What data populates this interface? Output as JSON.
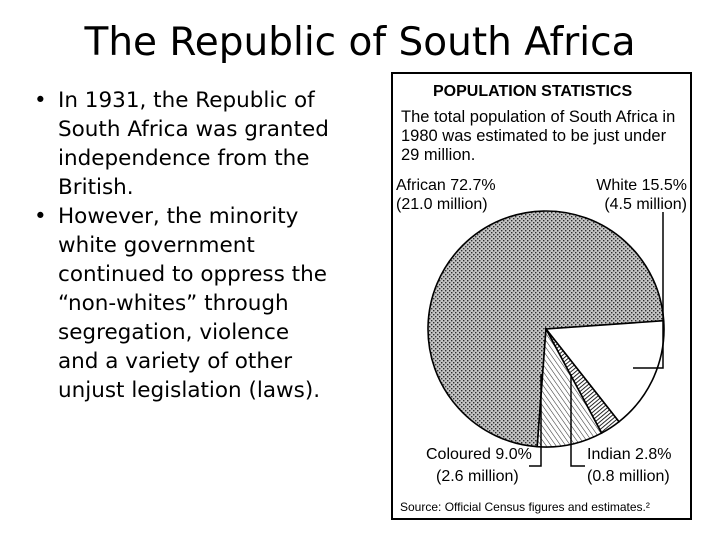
{
  "slide": {
    "title": "The Republic of South Africa",
    "bullets": [
      {
        "marker": "•",
        "text": "In 1931, the Republic of South Africa was granted independence from the British."
      },
      {
        "marker": "•",
        "text": "However, the minority white government continued to oppress the “non-whites” through segregation, violence and a variety of other unjust legislation (laws)."
      }
    ]
  },
  "chart_data": {
    "type": "pie",
    "title": "POPULATION STATISTICS",
    "subtitle_lines": [
      "The total population of South Africa in",
      "1980 was estimated to be just under",
      "29 million."
    ],
    "slices": [
      {
        "name": "African",
        "percent": 72.7,
        "percent_label": "72.7%",
        "population_label": "(21.0 million)",
        "fill": "stipple"
      },
      {
        "name": "White",
        "percent": 15.5,
        "percent_label": "15.5%",
        "population_label": "(4.5 million)",
        "fill": "white"
      },
      {
        "name": "Indian",
        "percent": 2.8,
        "percent_label": "2.8%",
        "population_label": "(0.8 million)",
        "fill": "dark-hatch"
      },
      {
        "name": "Coloured",
        "percent": 9.0,
        "percent_label": "9.0%",
        "population_label": "(2.6 million)",
        "fill": "light-hatch"
      }
    ],
    "source": "Source: Official Census figures and estimates.²"
  }
}
